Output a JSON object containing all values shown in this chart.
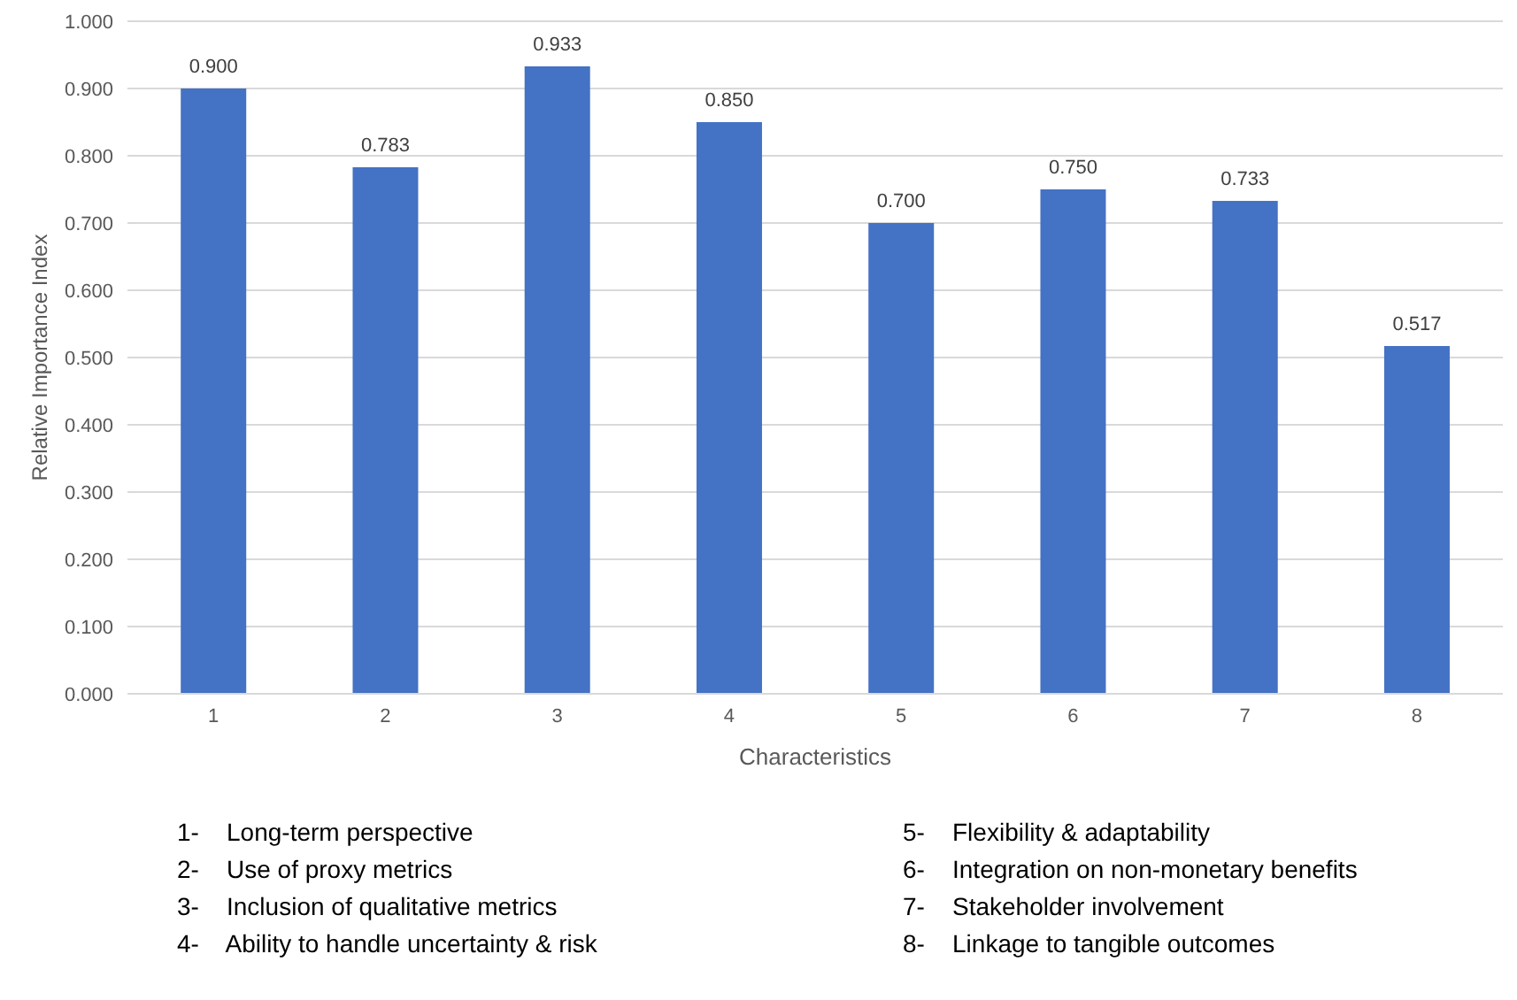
{
  "chart_data": {
    "type": "bar",
    "categories": [
      "1",
      "2",
      "3",
      "4",
      "5",
      "6",
      "7",
      "8"
    ],
    "values": [
      0.9,
      0.783,
      0.933,
      0.85,
      0.7,
      0.75,
      0.733,
      0.517
    ],
    "value_labels": [
      "0.900",
      "0.783",
      "0.933",
      "0.850",
      "0.700",
      "0.750",
      "0.733",
      "0.517"
    ],
    "color": "#4472c4",
    "xlabel": "Characteristics",
    "ylabel": "Relative Importance Index",
    "ylim": [
      0,
      1
    ],
    "yticks": [
      {
        "value": 0,
        "label": "0.000"
      },
      {
        "value": 0.1,
        "label": "0.100"
      },
      {
        "value": 0.2,
        "label": "0.200"
      },
      {
        "value": 0.3,
        "label": "0.300"
      },
      {
        "value": 0.4,
        "label": "0.400"
      },
      {
        "value": 0.5,
        "label": "0.500"
      },
      {
        "value": 0.6,
        "label": "0.600"
      },
      {
        "value": 0.7,
        "label": "0.700"
      },
      {
        "value": 0.8,
        "label": "0.800"
      },
      {
        "value": 0.9,
        "label": "0.900"
      },
      {
        "value": 1,
        "label": "1.000"
      }
    ],
    "grid": "y",
    "annotations": [
      "1-    Long-term perspective",
      "2-    Use of proxy metrics",
      "3-    Inclusion of qualitative metrics",
      "4-    Ability to handle uncertainty & risk",
      "5-    Flexibility & adaptability",
      "6-    Integration on non-monetary benefits",
      "7-    Stakeholder involvement",
      "8-    Linkage to tangible outcomes"
    ]
  }
}
